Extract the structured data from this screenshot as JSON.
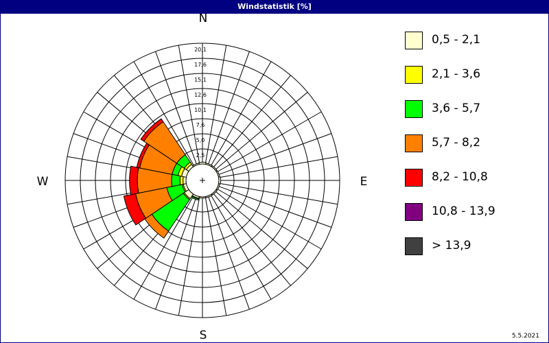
{
  "title": "Windstatistik [%]",
  "date": "5.5.2021",
  "colors": {
    "titlebar": "#000080",
    "grid": "#000000"
  },
  "chart_data": {
    "type": "polar-stacked-bar",
    "directions": [
      "N",
      "NNE",
      "NE",
      "ENE",
      "E",
      "ESE",
      "SE",
      "SSE",
      "S",
      "SSW",
      "SW",
      "WSW",
      "W",
      "WNW",
      "NW",
      "NNW"
    ],
    "compass_labels": {
      "n": "N",
      "e": "E",
      "s": "S",
      "w": "W"
    },
    "radial_ticks": [
      "2,5",
      "5,0",
      "7,6",
      "10,1",
      "12,6",
      "15,1",
      "17,6",
      "20,1"
    ],
    "rmax": 20.1,
    "series": [
      {
        "name": "0,5 - 2,1",
        "color": "#FFFFD0",
        "values": [
          0.3,
          0.2,
          0.2,
          0.2,
          0.3,
          0.2,
          0.2,
          0.2,
          0.2,
          0.3,
          0.9,
          0.5,
          0.5,
          0.8,
          0.5,
          0.2
        ]
      },
      {
        "name": "2,1 - 3,6",
        "color": "#FFFF00",
        "values": [
          0,
          0,
          0,
          0,
          0,
          0,
          0,
          0,
          0,
          0.1,
          0.2,
          0.2,
          0.5,
          0.6,
          0.4,
          0
        ]
      },
      {
        "name": "3,6 - 5,7",
        "color": "#00FF00",
        "values": [
          0,
          0,
          0,
          0,
          0,
          0,
          0,
          0,
          0,
          0.2,
          6.3,
          2.6,
          1.4,
          1.0,
          1.5,
          0
        ]
      },
      {
        "name": "5,7 - 8,2",
        "color": "#FF8000",
        "values": [
          0,
          0,
          0,
          0,
          0,
          0,
          0,
          0,
          0,
          0,
          1.4,
          5.3,
          5.7,
          5.5,
          6.6,
          0
        ]
      },
      {
        "name": "8,2 - 10,8",
        "color": "#FF0000",
        "values": [
          0,
          0,
          0,
          0,
          0,
          0,
          0,
          0,
          0,
          0,
          0,
          2.0,
          1.3,
          0.5,
          0.6,
          0
        ]
      },
      {
        "name": "10,8 - 13,9",
        "color": "#800080",
        "values": [
          0,
          0,
          0,
          0,
          0,
          0,
          0,
          0,
          0,
          0,
          0,
          0,
          0,
          0,
          0,
          0
        ]
      },
      {
        "name": "> 13,9",
        "color": "#404040",
        "values": [
          0,
          0,
          0,
          0,
          0,
          0,
          0,
          0,
          0,
          0,
          0,
          0,
          0,
          0,
          0,
          0
        ]
      }
    ]
  }
}
